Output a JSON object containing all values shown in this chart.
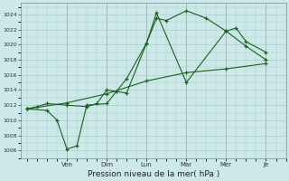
{
  "title": "Pression niveau de la mer( hPa )",
  "bg_color": "#cce8e8",
  "grid_color": "#aacccc",
  "line_color": "#1a6020",
  "ylim": [
    1005.0,
    1025.5
  ],
  "yticks": [
    1006,
    1008,
    1010,
    1012,
    1014,
    1016,
    1018,
    1020,
    1022,
    1024
  ],
  "xlim": [
    -0.3,
    13.0
  ],
  "day_labels": [
    "Ven",
    "Dim",
    "Lun",
    "Mar",
    "Mer",
    "Je"
  ],
  "day_positions": [
    2.0,
    4.0,
    6.0,
    8.0,
    10.0,
    12.0
  ],
  "series1_x": [
    0,
    0.5,
    1.0,
    2.0,
    3.0,
    3.5,
    4.0,
    4.5,
    5.0,
    6.0,
    6.5,
    7.0,
    8.0,
    9.0,
    10.0,
    10.5,
    11.0,
    12.0
  ],
  "series1_y": [
    1011.5,
    1011.8,
    1012.2,
    1012.0,
    1011.8,
    1012.2,
    1014.0,
    1013.8,
    1013.6,
    1020.2,
    1023.5,
    1023.2,
    1024.5,
    1023.5,
    1021.8,
    1022.2,
    1020.4,
    1019.0
  ],
  "series2_x": [
    0,
    1.0,
    1.5,
    2.0,
    2.5,
    3.0,
    4.0,
    5.0,
    6.0,
    6.5,
    8.0,
    10.0,
    11.0,
    12.0
  ],
  "series2_y": [
    1011.5,
    1011.3,
    1010.0,
    1006.2,
    1006.6,
    1012.0,
    1012.2,
    1015.5,
    1020.2,
    1024.2,
    1015.0,
    1021.8,
    1019.8,
    1018.0
  ],
  "series3_x": [
    0,
    2.0,
    4.0,
    6.0,
    8.0,
    10.0,
    12.0
  ],
  "series3_y": [
    1011.5,
    1012.3,
    1013.5,
    1015.2,
    1016.3,
    1016.8,
    1017.5
  ]
}
